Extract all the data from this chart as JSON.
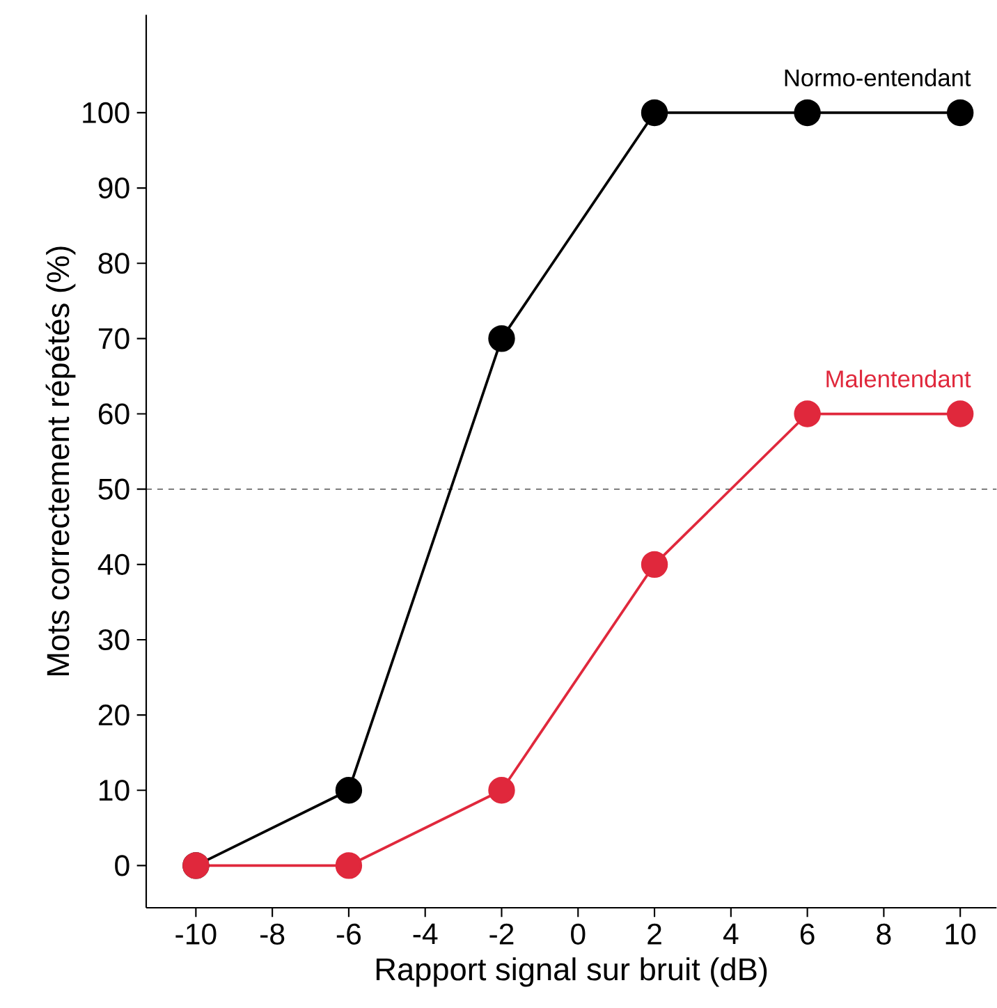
{
  "chart_data": {
    "type": "line",
    "xlabel": "Rapport signal sur bruit (dB)",
    "ylabel": "Mots correctement répétés (%)",
    "x": [
      -10,
      -6,
      -2,
      2,
      6,
      10
    ],
    "series": [
      {
        "name": "Normo-entendant",
        "color": "#000000",
        "values": [
          0,
          10,
          70,
          100,
          100,
          100
        ]
      },
      {
        "name": "Malentendant",
        "color": "#e0283c",
        "values": [
          0,
          0,
          10,
          40,
          60,
          60
        ]
      }
    ],
    "xlim": [
      -11.3,
      10.95
    ],
    "ylim": [
      -5.6,
      113
    ],
    "xticks": [
      -10,
      -8,
      -6,
      -4,
      -2,
      0,
      2,
      4,
      6,
      8,
      10
    ],
    "yticks": [
      0,
      10,
      20,
      30,
      40,
      50,
      60,
      70,
      80,
      90,
      100
    ],
    "ref_lines": [
      {
        "axis": "y",
        "value": 50,
        "line_style": "dashed",
        "color": "#000000"
      }
    ],
    "grid": false,
    "legend": false,
    "marker": "circle",
    "line_style": "solid"
  }
}
